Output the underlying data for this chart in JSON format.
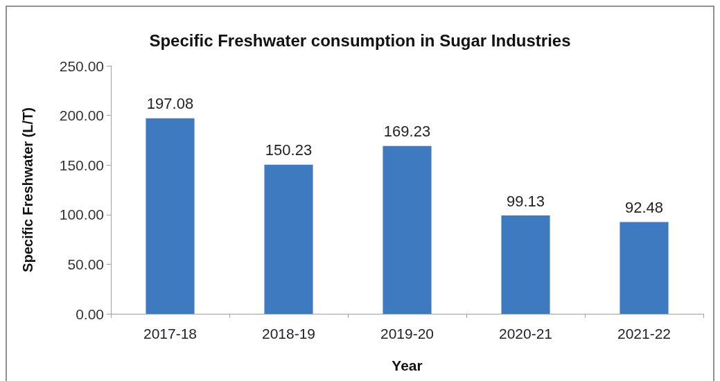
{
  "chart_data": {
    "type": "bar",
    "title": "Specific Freshwater consumption in Sugar Industries",
    "xlabel": "Year",
    "ylabel": "Specific Freshwater (L/T)",
    "categories": [
      "2017-18",
      "2018-19",
      "2019-20",
      "2020-21",
      "2021-22"
    ],
    "values": [
      197.08,
      150.23,
      169.23,
      99.13,
      92.48
    ],
    "color": "#3d7abf",
    "ylim": [
      0,
      250
    ],
    "yticks": [
      {
        "value": 0,
        "label": "0.00"
      },
      {
        "value": 50,
        "label": "50.00"
      },
      {
        "value": 100,
        "label": "100.00"
      },
      {
        "value": 150,
        "label": "150.00"
      },
      {
        "value": 200,
        "label": "200.00"
      },
      {
        "value": 250,
        "label": "250.00"
      }
    ],
    "grid": false,
    "data_labels": true
  }
}
